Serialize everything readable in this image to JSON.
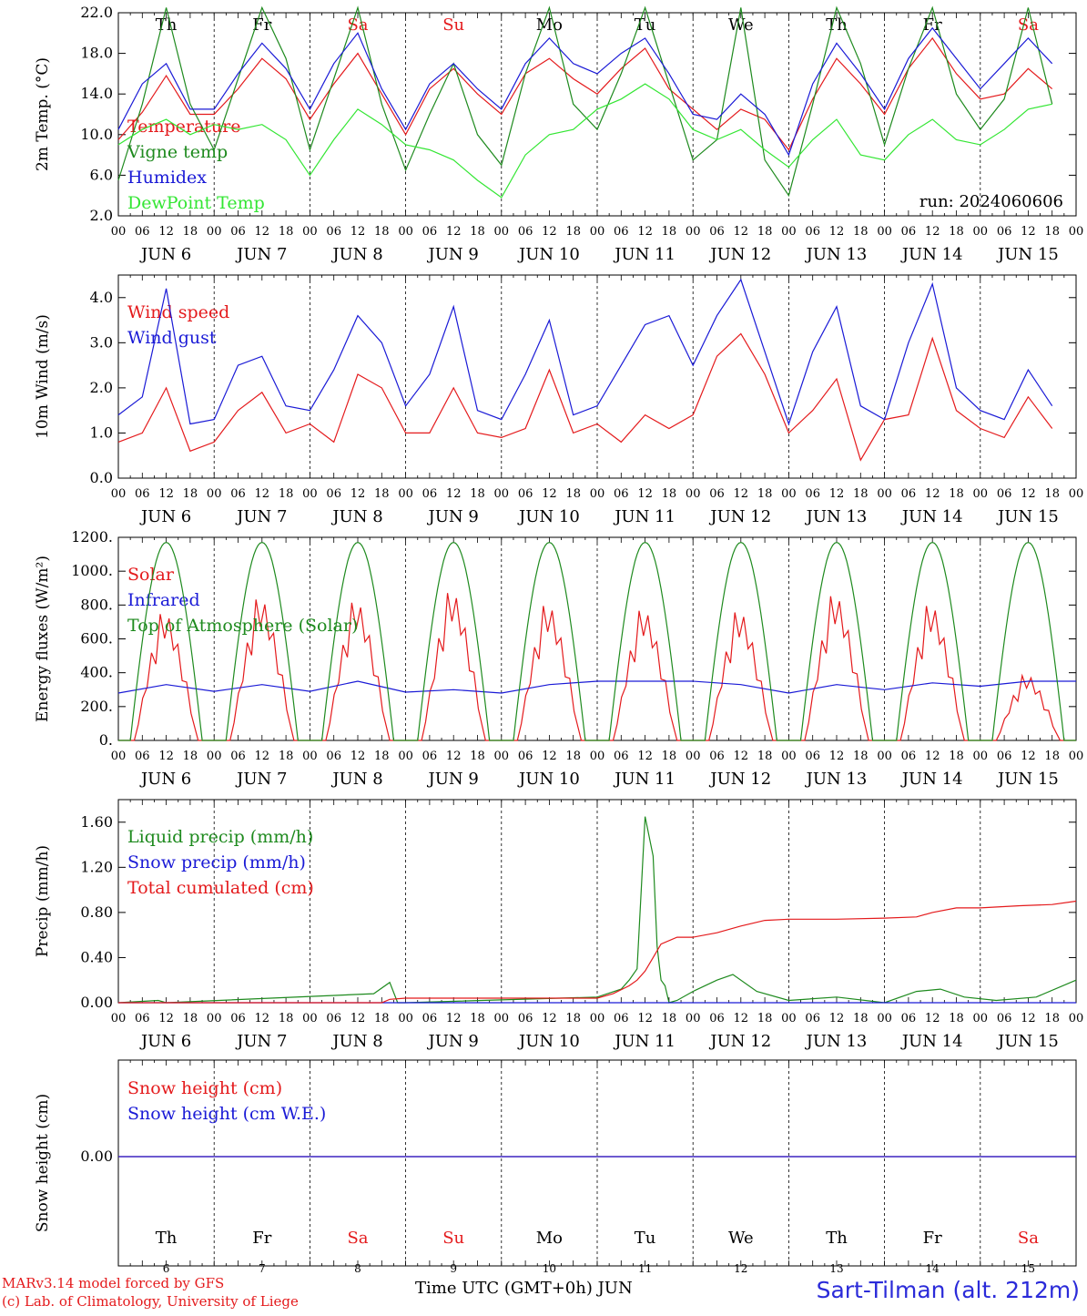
{
  "chart_data": {
    "type": "line",
    "run_label": "run: 2024060606",
    "time_axis": {
      "hour_ticks": [
        "00",
        "06",
        "12",
        "18"
      ],
      "day_labels": [
        "JUN  6",
        "JUN  7",
        "JUN  8",
        "JUN  9",
        "JUN 10",
        "JUN 11",
        "JUN 12",
        "JUN 13",
        "JUN 14",
        "JUN 15"
      ],
      "weekdays": [
        "Th",
        "Fr",
        "Sa",
        "Su",
        "Mo",
        "Tu",
        "We",
        "Th",
        "Fr",
        "Sa"
      ],
      "weekday_colors": [
        "#000000",
        "#000000",
        "#e41a1c",
        "#e41a1c",
        "#000000",
        "#000000",
        "#000000",
        "#000000",
        "#000000",
        "#e41a1c"
      ],
      "day_numbers": [
        "6",
        "7",
        "8",
        "9",
        "10",
        "11",
        "12",
        "13",
        "14",
        "15"
      ],
      "end_label": "00"
    },
    "panels": [
      {
        "id": "temperature",
        "ylabel": "2m Temp. (°C)",
        "ylim": [
          2,
          22
        ],
        "yticks": [
          2,
          6,
          10,
          14,
          18,
          22
        ],
        "ytick_labels": [
          "2.0",
          "6.0",
          "10.0",
          "14.0",
          "18.0",
          "22.0"
        ],
        "show_weekdays_top": true,
        "series": [
          {
            "name": "Temperature",
            "color": "#e41a1c",
            "x_hours": [
              0,
              6,
              12,
              18,
              24,
              30,
              36,
              42,
              48,
              54,
              60,
              66,
              72,
              78,
              84,
              90,
              96,
              102,
              108,
              114,
              120,
              126,
              132,
              138,
              144,
              150,
              156,
              162,
              168,
              174,
              180,
              186,
              192,
              198,
              204,
              210,
              216,
              222,
              228,
              234
            ],
            "values": [
              9.5,
              12.2,
              15.8,
              12.0,
              12.0,
              14.5,
              17.5,
              15.5,
              11.5,
              15.0,
              18.0,
              14.0,
              10.0,
              14.5,
              16.5,
              14.0,
              12.0,
              16.0,
              17.5,
              15.5,
              14.0,
              16.5,
              18.5,
              14.5,
              12.5,
              10.5,
              12.5,
              11.5,
              8.5,
              13.5,
              17.5,
              15.0,
              12.0,
              16.5,
              19.5,
              16.0,
              13.5,
              14.0,
              16.5,
              14.5
            ]
          },
          {
            "name": "Vigne temp",
            "color": "#1e8a1e",
            "x_hours": [
              0,
              6,
              12,
              18,
              24,
              30,
              36,
              42,
              48,
              54,
              60,
              66,
              72,
              78,
              84,
              90,
              96,
              102,
              108,
              114,
              120,
              126,
              132,
              138,
              144,
              150,
              156,
              162,
              168,
              174,
              180,
              186,
              192,
              198,
              204,
              210,
              216,
              222,
              228,
              234
            ],
            "values": [
              5.5,
              13.0,
              22.5,
              13.0,
              8.5,
              15.5,
              22.5,
              17.5,
              8.5,
              15.5,
              22.5,
              13.0,
              6.5,
              12.0,
              17.0,
              10.0,
              7.0,
              16.0,
              22.5,
              13.0,
              10.5,
              16.0,
              22.5,
              15.0,
              7.5,
              9.5,
              22.5,
              7.5,
              4.0,
              13.0,
              22.5,
              17.0,
              9.0,
              16.5,
              22.5,
              14.0,
              10.5,
              13.5,
              22.5,
              13.0
            ]
          },
          {
            "name": "Humidex",
            "color": "#1a1ad6",
            "x_hours": [
              0,
              6,
              12,
              18,
              24,
              30,
              36,
              42,
              48,
              54,
              60,
              66,
              72,
              78,
              84,
              90,
              96,
              102,
              108,
              114,
              120,
              126,
              132,
              138,
              144,
              150,
              156,
              162,
              168,
              174,
              180,
              186,
              192,
              198,
              204,
              210,
              216,
              222,
              228,
              234
            ],
            "values": [
              10.5,
              15.0,
              17.0,
              12.5,
              12.5,
              16.0,
              19.0,
              16.5,
              12.5,
              17.0,
              20.0,
              14.5,
              10.5,
              15.0,
              17.0,
              14.5,
              12.5,
              17.0,
              19.5,
              17.0,
              16.0,
              18.0,
              19.5,
              16.0,
              12.0,
              11.5,
              14.0,
              12.0,
              8.0,
              15.0,
              19.0,
              16.0,
              12.5,
              17.5,
              20.5,
              17.5,
              14.5,
              17.0,
              19.5,
              17.0
            ]
          },
          {
            "name": "DewPoint Temp",
            "color": "#33e633",
            "x_hours": [
              0,
              6,
              12,
              18,
              24,
              30,
              36,
              42,
              48,
              54,
              60,
              66,
              72,
              78,
              84,
              90,
              96,
              102,
              108,
              114,
              120,
              126,
              132,
              138,
              144,
              150,
              156,
              162,
              168,
              174,
              180,
              186,
              192,
              198,
              204,
              210,
              216,
              222,
              228,
              234
            ],
            "values": [
              9.0,
              10.5,
              11.5,
              10.0,
              11.0,
              10.5,
              11.0,
              9.5,
              6.0,
              9.5,
              12.5,
              11.0,
              9.0,
              8.5,
              7.5,
              5.5,
              3.8,
              8.0,
              10.0,
              10.5,
              12.5,
              13.5,
              15.0,
              13.5,
              10.5,
              9.5,
              10.5,
              8.5,
              6.8,
              9.5,
              11.5,
              8.0,
              7.5,
              10.0,
              11.5,
              9.5,
              9.0,
              10.5,
              12.5,
              13.0
            ]
          }
        ]
      },
      {
        "id": "wind",
        "ylabel": "10m Wind (m/s)",
        "ylim": [
          0,
          4.5
        ],
        "yticks": [
          0,
          1,
          2,
          3,
          4
        ],
        "ytick_labels": [
          "0.0",
          "1.0",
          "2.0",
          "3.0",
          "4.0"
        ],
        "series": [
          {
            "name": "Wind speed",
            "color": "#e41a1c",
            "x_hours": [
              0,
              6,
              12,
              18,
              24,
              30,
              36,
              42,
              48,
              54,
              60,
              66,
              72,
              78,
              84,
              90,
              96,
              102,
              108,
              114,
              120,
              126,
              132,
              138,
              144,
              150,
              156,
              162,
              168,
              174,
              180,
              186,
              192,
              198,
              204,
              210,
              216,
              222,
              228,
              234
            ],
            "values": [
              0.8,
              1.0,
              2.0,
              0.6,
              0.8,
              1.5,
              1.9,
              1.0,
              1.2,
              0.8,
              2.3,
              2.0,
              1.0,
              1.0,
              2.0,
              1.0,
              0.9,
              1.1,
              2.4,
              1.0,
              1.2,
              0.8,
              1.4,
              1.1,
              1.4,
              2.7,
              3.2,
              2.3,
              1.0,
              1.5,
              2.2,
              0.4,
              1.3,
              1.4,
              3.1,
              1.5,
              1.1,
              0.9,
              1.8,
              1.1
            ]
          },
          {
            "name": "Wind gust",
            "color": "#1a1ad6",
            "x_hours": [
              0,
              6,
              12,
              18,
              24,
              30,
              36,
              42,
              48,
              54,
              60,
              66,
              72,
              78,
              84,
              90,
              96,
              102,
              108,
              114,
              120,
              126,
              132,
              138,
              144,
              150,
              156,
              162,
              168,
              174,
              180,
              186,
              192,
              198,
              204,
              210,
              216,
              222,
              228,
              234
            ],
            "values": [
              1.4,
              1.8,
              4.2,
              1.2,
              1.3,
              2.5,
              2.7,
              1.6,
              1.5,
              2.4,
              3.6,
              3.0,
              1.6,
              2.3,
              3.8,
              1.5,
              1.3,
              2.3,
              3.5,
              1.4,
              1.6,
              2.5,
              3.4,
              3.6,
              2.5,
              3.6,
              4.4,
              2.8,
              1.2,
              2.8,
              3.8,
              1.6,
              1.3,
              3.0,
              4.3,
              2.0,
              1.5,
              1.3,
              2.4,
              1.6
            ]
          }
        ]
      },
      {
        "id": "energy",
        "ylabel": "Energy fluxes (W/m²)",
        "ylim": [
          0,
          1200
        ],
        "yticks": [
          0,
          200,
          400,
          600,
          800,
          1000,
          1200
        ],
        "ytick_labels": [
          "0.",
          "200.",
          "400.",
          "600.",
          "800.",
          "1000.",
          "1200."
        ],
        "series": [
          {
            "name": "Solar",
            "color": "#e41a1c",
            "day_peaks": [
              780,
              870,
              850,
              910,
              830,
              800,
              790,
              890,
              830,
              400
            ]
          },
          {
            "name": "Infrared",
            "color": "#1a1ad6",
            "x_hours": [
              0,
              12,
              24,
              36,
              48,
              60,
              72,
              84,
              96,
              108,
              120,
              132,
              144,
              156,
              168,
              180,
              192,
              204,
              216,
              228,
              240
            ],
            "values": [
              280,
              330,
              290,
              330,
              290,
              350,
              285,
              300,
              280,
              330,
              350,
              350,
              350,
              330,
              280,
              330,
              300,
              340,
              320,
              350,
              350
            ]
          },
          {
            "name": "Top of Atmosphere (Solar)",
            "color": "#1e8a1e",
            "day_peaks": [
              1170,
              1170,
              1170,
              1170,
              1170,
              1170,
              1170,
              1170,
              1170,
              1170
            ]
          }
        ]
      },
      {
        "id": "precip",
        "ylabel": "Precip (mm/h)",
        "ylim": [
          0,
          1.8
        ],
        "yticks": [
          0,
          0.4,
          0.8,
          1.2,
          1.6
        ],
        "ytick_labels": [
          "0.00",
          "0.40",
          "0.80",
          "1.20",
          "1.60"
        ],
        "series": [
          {
            "name": "Liquid precip (mm/h)",
            "color": "#1e8a1e",
            "x_hours": [
              0,
              10,
              12,
              64,
              68,
              70,
              72,
              120,
              126,
              128,
              130,
              132,
              134,
              135,
              136,
              137,
              138,
              140,
              144,
              150,
              154,
              160,
              168,
              180,
              192,
              200,
              206,
              212,
              220,
              230,
              240
            ],
            "values": [
              0,
              0.02,
              0.0,
              0.08,
              0.18,
              0.0,
              0.0,
              0.05,
              0.12,
              0.2,
              0.3,
              1.65,
              1.3,
              0.5,
              0.2,
              0.15,
              0.0,
              0.02,
              0.1,
              0.2,
              0.25,
              0.1,
              0.02,
              0.05,
              0.0,
              0.1,
              0.12,
              0.05,
              0.02,
              0.05,
              0.2
            ]
          },
          {
            "name": "Snow precip (mm/h)",
            "color": "#1a1ad6",
            "x_hours": [
              0,
              240
            ],
            "values": [
              0,
              0
            ]
          },
          {
            "name": "Total cumulated (cm)",
            "color": "#e41a1c",
            "x_hours": [
              0,
              66,
              68,
              72,
              120,
              124,
              128,
              130,
              132,
              134,
              136,
              140,
              144,
              150,
              156,
              162,
              168,
              180,
              192,
              200,
              204,
              210,
              216,
              226,
              234,
              240
            ],
            "values": [
              0.0,
              0.0,
              0.03,
              0.04,
              0.04,
              0.08,
              0.15,
              0.2,
              0.28,
              0.4,
              0.52,
              0.58,
              0.58,
              0.62,
              0.68,
              0.73,
              0.74,
              0.74,
              0.75,
              0.76,
              0.8,
              0.84,
              0.84,
              0.86,
              0.87,
              0.9
            ]
          }
        ]
      },
      {
        "id": "snow",
        "ylabel": "Snow height (cm)",
        "yticks": [
          0
        ],
        "ytick_labels": [
          "0.00"
        ],
        "show_weekdays_bottom": true,
        "series": [
          {
            "name": "Snow height (cm)",
            "color": "#e41a1c",
            "x_hours": [
              0,
              240
            ],
            "values": [
              0,
              0
            ]
          },
          {
            "name": "Snow height (cm W.E.)",
            "color": "#1a1ad6",
            "x_hours": [
              0,
              240
            ],
            "values": [
              0,
              0
            ]
          }
        ]
      }
    ],
    "footer": {
      "model_line1": "MARv3.14 model forced by GFS",
      "model_line2": "(c) Lab. of Climatology, University of Liege",
      "time_label": "Time UTC (GMT+0h) JUN",
      "site": "Sart-Tilman (alt. 212m)"
    }
  }
}
